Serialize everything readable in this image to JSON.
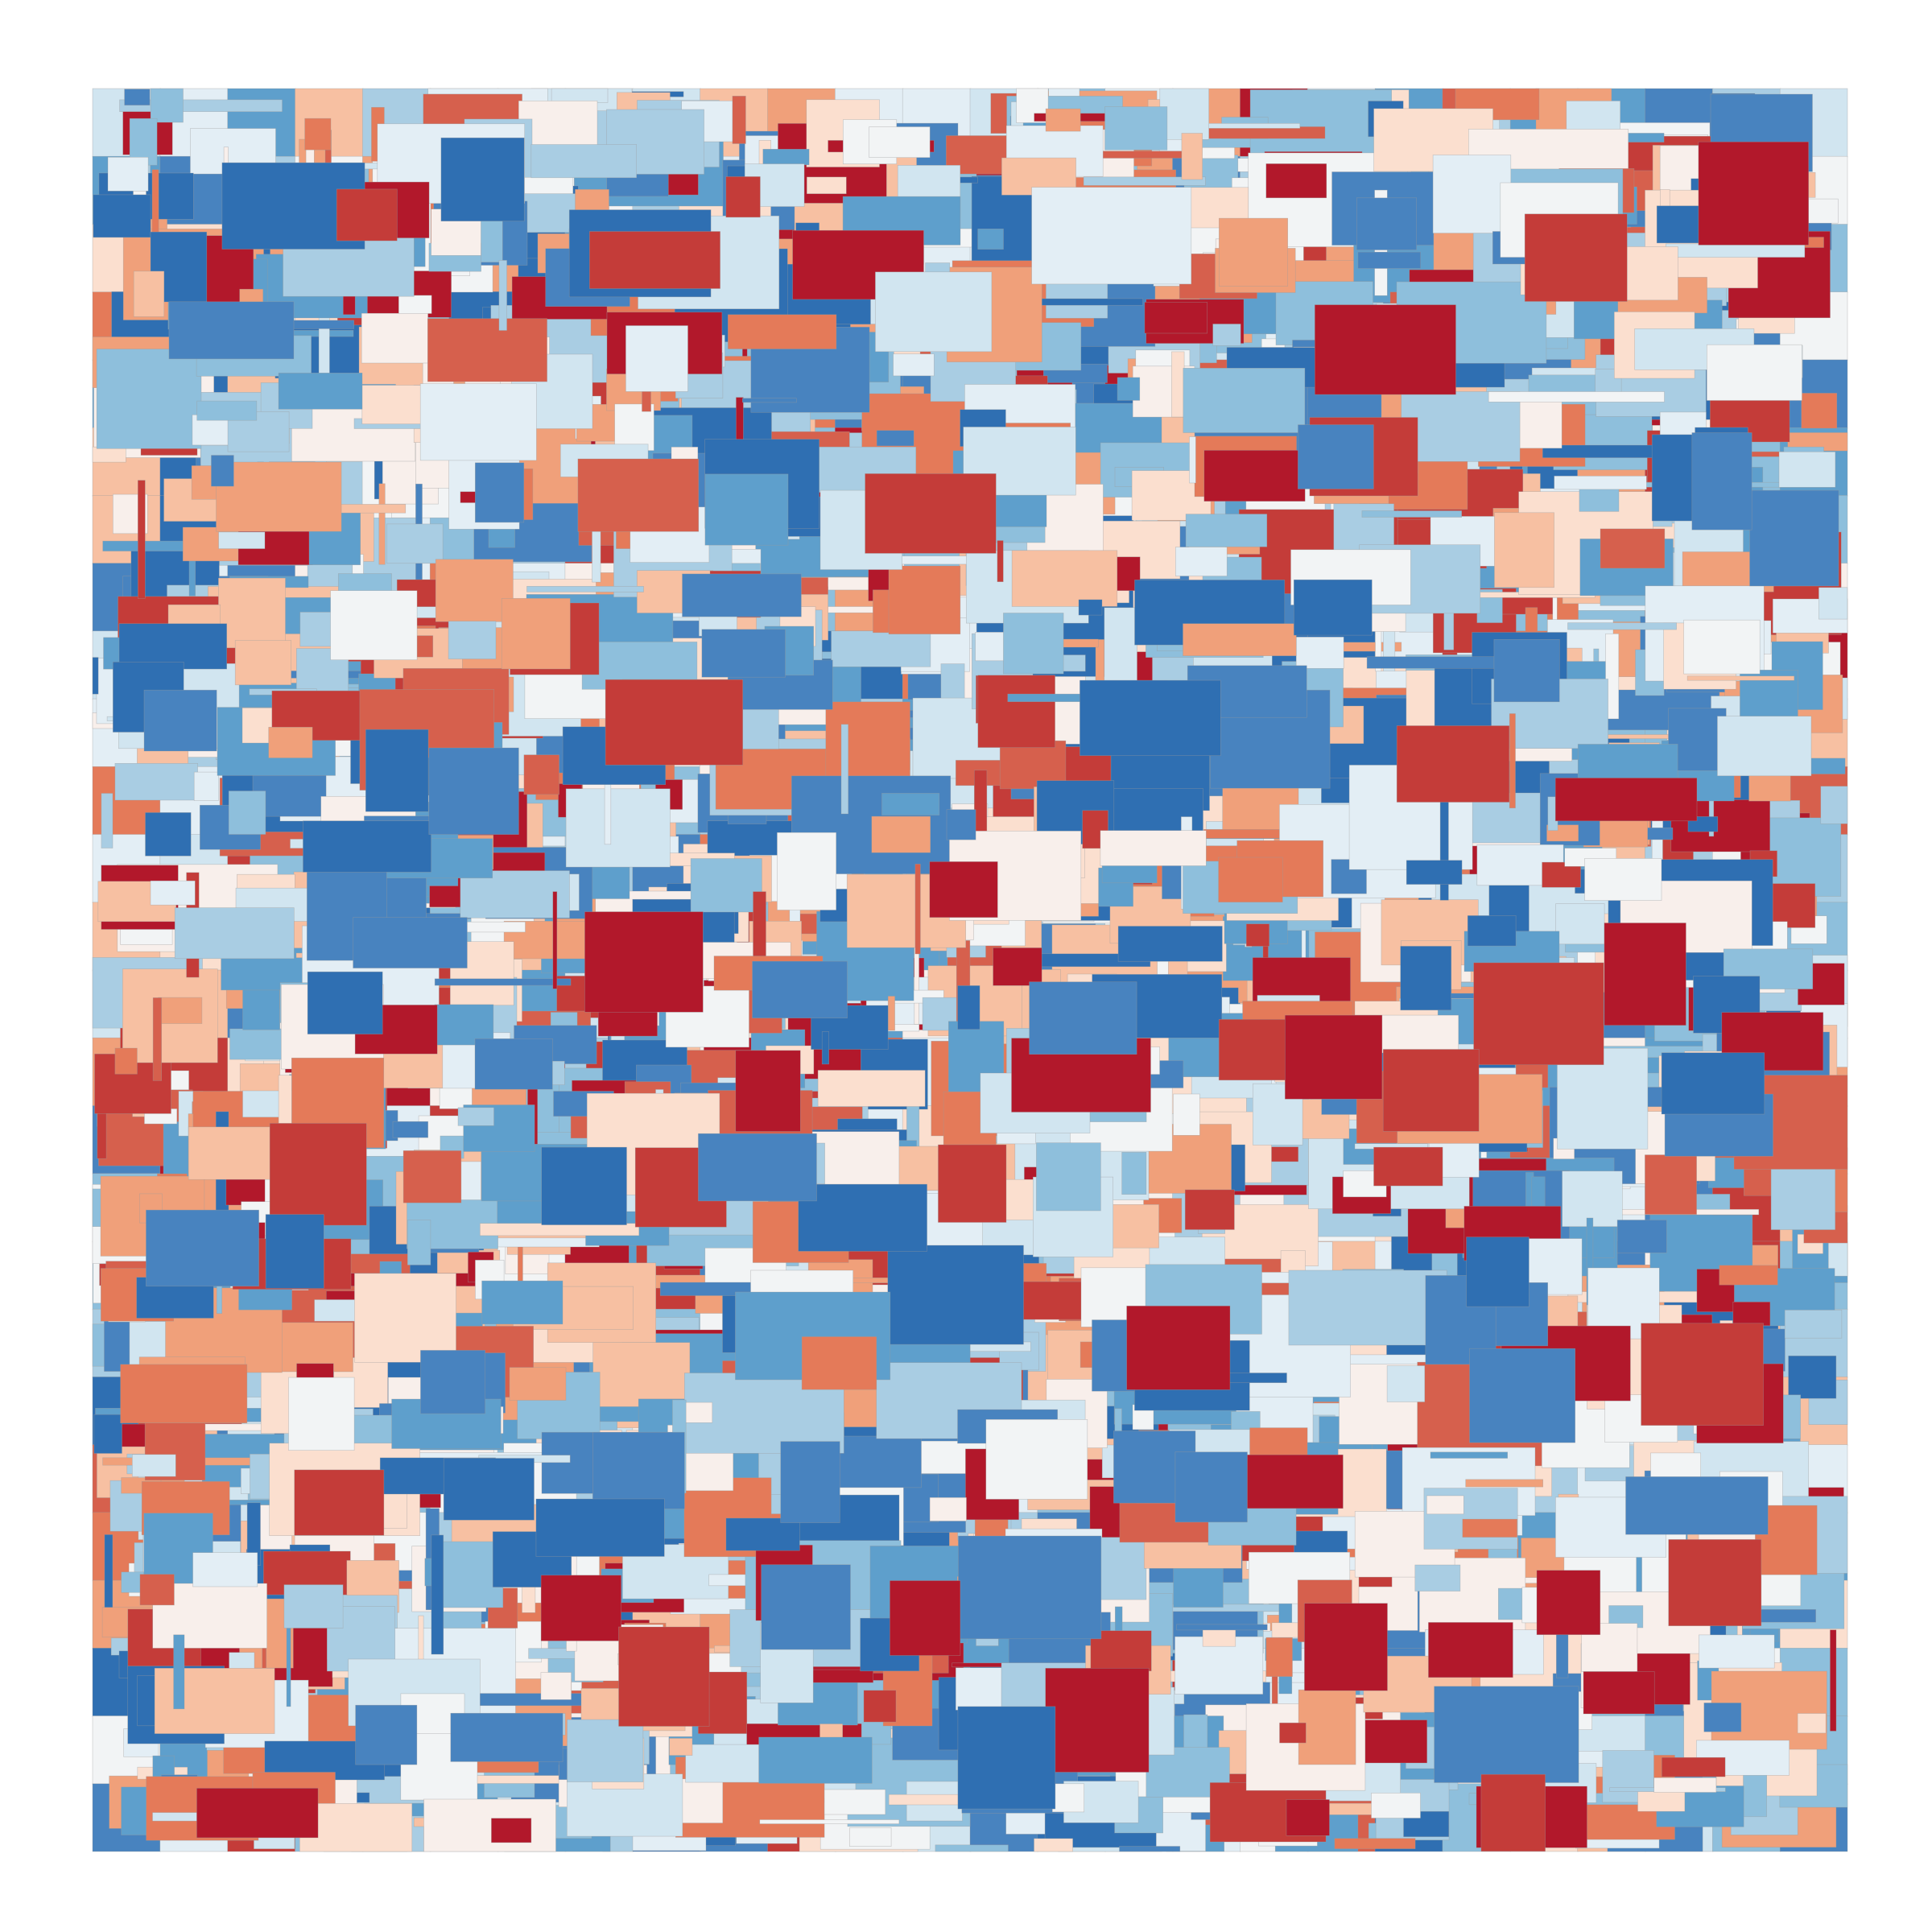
{
  "artwork": {
    "palette": {
      "red_deep": "#b2182b",
      "red_strong": "#c43c39",
      "red_medium": "#d6604d",
      "red_orange": "#e47a59",
      "salmon": "#f0a07a",
      "peach": "#f7c0a2",
      "peach_light": "#fbdfcf",
      "blush": "#f8efeb",
      "near_white": "#f2f4f5",
      "ice": "#e3eef5",
      "blue_pale": "#d1e5f0",
      "blue_light": "#a9cde3",
      "blue_soft": "#8ebfdc",
      "blue_medium": "#5e9fcc",
      "blue_strong": "#4883bf",
      "blue_deep": "#2f6fb2",
      "background": "#ffffff"
    },
    "palette_order": [
      "red_deep",
      "red_strong",
      "red_medium",
      "red_orange",
      "salmon",
      "peach",
      "peach_light",
      "blush",
      "near_white",
      "ice",
      "blue_pale",
      "blue_light",
      "blue_soft",
      "blue_medium",
      "blue_strong",
      "blue_deep"
    ]
  }
}
